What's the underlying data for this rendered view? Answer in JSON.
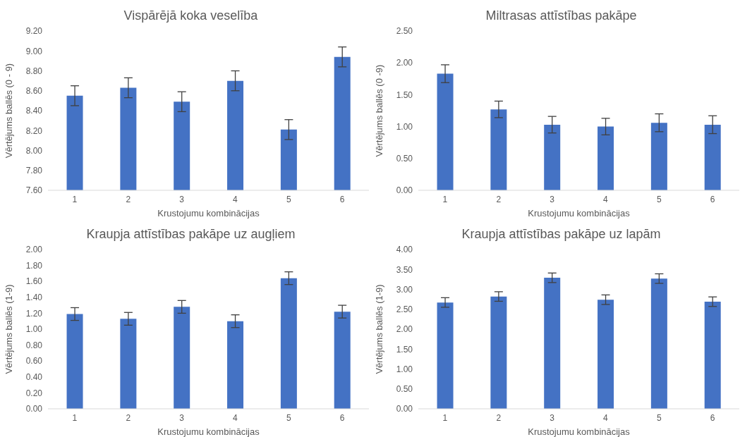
{
  "chart_data": [
    {
      "type": "bar",
      "title": "Vispārējā koka veselība",
      "xlabel": "Krustojumu kombinācijas",
      "ylabel": "Vērtējums ballēs (0 - 9)",
      "categories": [
        "1",
        "2",
        "3",
        "4",
        "5",
        "6"
      ],
      "values": [
        8.55,
        8.63,
        8.49,
        8.7,
        8.21,
        8.94
      ],
      "errors": [
        0.1,
        0.1,
        0.1,
        0.1,
        0.1,
        0.1
      ],
      "color": "#4472c4",
      "ylim": [
        7.6,
        9.2
      ],
      "yticks": [
        {
          "value": 7.6,
          "label": "7.60"
        },
        {
          "value": 7.8,
          "label": "7.80"
        },
        {
          "value": 8,
          "label": "8.00"
        },
        {
          "value": 8.2,
          "label": "8.20"
        },
        {
          "value": 8.4,
          "label": "8.40"
        },
        {
          "value": 8.6,
          "label": "8.60"
        },
        {
          "value": 8.8,
          "label": "8.80"
        },
        {
          "value": 9,
          "label": "9.00"
        },
        {
          "value": 9.2,
          "label": "9.20"
        }
      ]
    },
    {
      "type": "bar",
      "title": "Miltrasas attīstības pakāpe",
      "xlabel": "Krustojumu kombinācijas",
      "ylabel": "Vērtējums ballēs (0  -9)",
      "categories": [
        "1",
        "2",
        "3",
        "4",
        "5",
        "6"
      ],
      "values": [
        1.83,
        1.27,
        1.03,
        1.0,
        1.06,
        1.03
      ],
      "errors": [
        0.14,
        0.13,
        0.13,
        0.13,
        0.14,
        0.14
      ],
      "color": "#4472c4",
      "ylim": [
        0,
        2.5
      ],
      "yticks": [
        {
          "value": 0,
          "label": "0.00"
        },
        {
          "value": 0.5,
          "label": "0.50"
        },
        {
          "value": 1,
          "label": "1.00"
        },
        {
          "value": 1.5,
          "label": "1.50"
        },
        {
          "value": 2,
          "label": "2.00"
        },
        {
          "value": 2.5,
          "label": "2.50"
        }
      ]
    },
    {
      "type": "bar",
      "title": "Kraupja attīstības pakāpe uz augļiem",
      "xlabel": "Krustojumu kombinācijas",
      "ylabel": "Vērtējums ballēs (1-9)",
      "categories": [
        "1",
        "2",
        "3",
        "4",
        "5",
        "6"
      ],
      "values": [
        1.19,
        1.13,
        1.28,
        1.1,
        1.64,
        1.22
      ],
      "errors": [
        0.08,
        0.08,
        0.08,
        0.08,
        0.08,
        0.08
      ],
      "color": "#4472c4",
      "ylim": [
        0,
        2
      ],
      "yticks": [
        {
          "value": 0,
          "label": "0.00"
        },
        {
          "value": 0.2,
          "label": "0.20"
        },
        {
          "value": 0.4,
          "label": "0.40"
        },
        {
          "value": 0.6,
          "label": "0.60"
        },
        {
          "value": 0.8,
          "label": "0.80"
        },
        {
          "value": 1,
          "label": "1.00"
        },
        {
          "value": 1.2,
          "label": "1.20"
        },
        {
          "value": 1.4,
          "label": "1.40"
        },
        {
          "value": 1.6,
          "label": "1.60"
        },
        {
          "value": 1.8,
          "label": "1.80"
        },
        {
          "value": 2,
          "label": "2.00"
        }
      ]
    },
    {
      "type": "bar",
      "title": "Kraupja attīstības pakāpe uz lapām",
      "xlabel": "Krustojumu kombinācijas",
      "ylabel": "Vērtējums ballēs (1-9)",
      "categories": [
        "1",
        "2",
        "3",
        "4",
        "5",
        "6"
      ],
      "values": [
        2.67,
        2.82,
        3.29,
        2.74,
        3.27,
        2.69
      ],
      "errors": [
        0.12,
        0.12,
        0.12,
        0.12,
        0.12,
        0.12
      ],
      "color": "#4472c4",
      "ylim": [
        0,
        4
      ],
      "yticks": [
        {
          "value": 0,
          "label": "0.00"
        },
        {
          "value": 0.5,
          "label": "0.50"
        },
        {
          "value": 1,
          "label": "1.00"
        },
        {
          "value": 1.5,
          "label": "1.50"
        },
        {
          "value": 2,
          "label": "2.00"
        },
        {
          "value": 2.5,
          "label": "2.50"
        },
        {
          "value": 3,
          "label": "3.00"
        },
        {
          "value": 3.5,
          "label": "3.50"
        },
        {
          "value": 4,
          "label": "4.00"
        }
      ]
    }
  ]
}
